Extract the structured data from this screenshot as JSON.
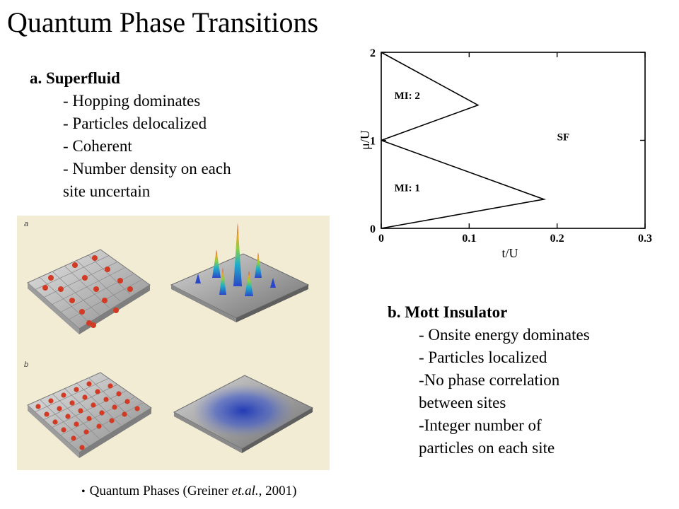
{
  "title": "Quantum Phase Transitions",
  "superfluid": {
    "heading": "a. Superfluid",
    "items": [
      "- Hopping dominates",
      "- Particles delocalized",
      "- Coherent",
      "- Number density on each"
    ],
    "continuation": "site uncertain"
  },
  "mott": {
    "heading": "b. Mott Insulator",
    "items": [
      "- Onsite energy dominates",
      "- Particles localized",
      "-No phase correlation"
    ],
    "continuation1": "between sites",
    "item4": "-Integer number of",
    "continuation2": "particles on each site"
  },
  "figure": {
    "panel_a_label": "a",
    "panel_b_label": "b"
  },
  "caption": {
    "bullet": "•",
    "text_before": "Quantum Phases (Greiner ",
    "text_italic": "et.al.",
    "text_after": ", 2001)"
  },
  "chart_data": {
    "type": "line",
    "xlabel": "t/U",
    "ylabel": "μ/U",
    "xlim": [
      0,
      0.3
    ],
    "ylim": [
      0,
      2
    ],
    "x_ticks": [
      0,
      0.1,
      0.2,
      0.3
    ],
    "x_tick_labels": [
      "0",
      "0.1",
      "0.2",
      "0.3"
    ],
    "y_ticks": [
      0,
      1,
      2
    ],
    "y_tick_labels": [
      "0",
      "1",
      "2"
    ],
    "grid": false,
    "series": [
      {
        "x": [
          0,
          0.185,
          0
        ],
        "y": [
          0,
          0.33,
          1
        ]
      },
      {
        "x": [
          0,
          0.11,
          0
        ],
        "y": [
          1,
          1.4,
          2
        ]
      }
    ],
    "regions": [
      {
        "label": "MI: 1",
        "x": 0.015,
        "y": 0.42
      },
      {
        "label": "MI: 2",
        "x": 0.015,
        "y": 1.47
      },
      {
        "label": "SF",
        "x": 0.2,
        "y": 1.0
      }
    ]
  }
}
